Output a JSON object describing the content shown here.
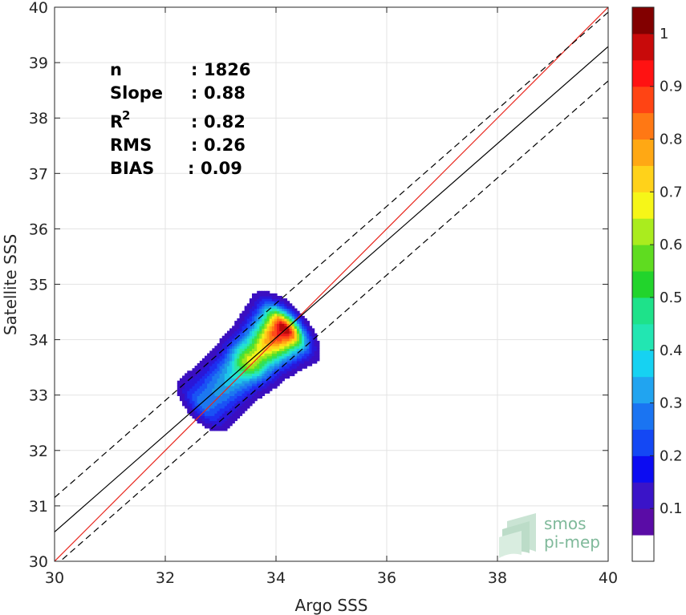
{
  "chart_data": {
    "type": "density-scatter",
    "xlabel": "Argo SSS",
    "ylabel": "Satellite SSS",
    "xlim": [
      30,
      40
    ],
    "ylim": [
      30,
      40
    ],
    "xticks": [
      "30",
      "32",
      "34",
      "36",
      "38",
      "40"
    ],
    "yticks": [
      "30",
      "31",
      "32",
      "33",
      "34",
      "35",
      "36",
      "37",
      "38",
      "39",
      "40"
    ],
    "grid": true,
    "stats": [
      {
        "key": "n",
        "sep": ":",
        "value": "1826"
      },
      {
        "key": "Slope",
        "sep": ":",
        "value": "0.88"
      },
      {
        "key": "R",
        "sup": "2",
        "sep": ":",
        "value": "0.82"
      },
      {
        "key": "RMS",
        "sep": ":",
        "value": "0.26"
      },
      {
        "key": "BIAS",
        "sep": ":",
        "value": "0.09"
      }
    ],
    "lines": [
      {
        "kind": "identity",
        "color": "#e8261d",
        "points": [
          [
            30,
            30
          ],
          [
            40,
            40
          ]
        ]
      },
      {
        "kind": "fit",
        "color": "#000000",
        "points": [
          [
            30,
            30.53
          ],
          [
            40,
            39.29
          ]
        ]
      },
      {
        "kind": "fit-upper",
        "color": "#000000",
        "dashed": true,
        "points": [
          [
            30,
            31.15
          ],
          [
            40,
            39.91
          ]
        ]
      },
      {
        "kind": "fit-lower",
        "color": "#000000",
        "dashed": true,
        "points": [
          [
            30,
            29.91
          ],
          [
            40,
            38.67
          ]
        ]
      }
    ],
    "density": {
      "center_a": [
        32.7,
        32.85
      ],
      "center_b": [
        34.15,
        34.2
      ],
      "levels": [
        0.05,
        0.1,
        0.15,
        0.2,
        0.25,
        0.3,
        0.35,
        0.4,
        0.45,
        0.5,
        0.55,
        0.6,
        0.65,
        0.7,
        0.75,
        0.8,
        0.85,
        0.9,
        0.95
      ],
      "level_colors": [
        "#3b0fc0",
        "#2a17d8",
        "#1e2ef0",
        "#1a52f5",
        "#1d78f0",
        "#1f9ae6",
        "#1ec4e8",
        "#24e2d2",
        "#2ee8a2",
        "#2fe05c",
        "#52e22a",
        "#9de51f",
        "#eef21a",
        "#ffd21a",
        "#ffa814",
        "#ff7a14",
        "#ff4a1a",
        "#ee1a1a",
        "#b80a0a"
      ]
    },
    "colorbar": {
      "ticks": [
        "0.1",
        "0.2",
        "0.3",
        "0.4",
        "0.5",
        "0.6",
        "0.7",
        "0.8",
        "0.9",
        "1"
      ],
      "colors": [
        "#ffffff",
        "#5a0ca6",
        "#3a14c8",
        "#0c0cf2",
        "#1448f4",
        "#1a74f2",
        "#21a4f0",
        "#16d2f2",
        "#22e6b2",
        "#1ee28a",
        "#22d42c",
        "#5fdc20",
        "#aaec1e",
        "#f6f618",
        "#ffd21a",
        "#ffa814",
        "#ff7814",
        "#ff4414",
        "#ff1212",
        "#c80a0a",
        "#820000"
      ]
    }
  },
  "logo": {
    "line1": "smos",
    "line2": "pi-mep"
  }
}
